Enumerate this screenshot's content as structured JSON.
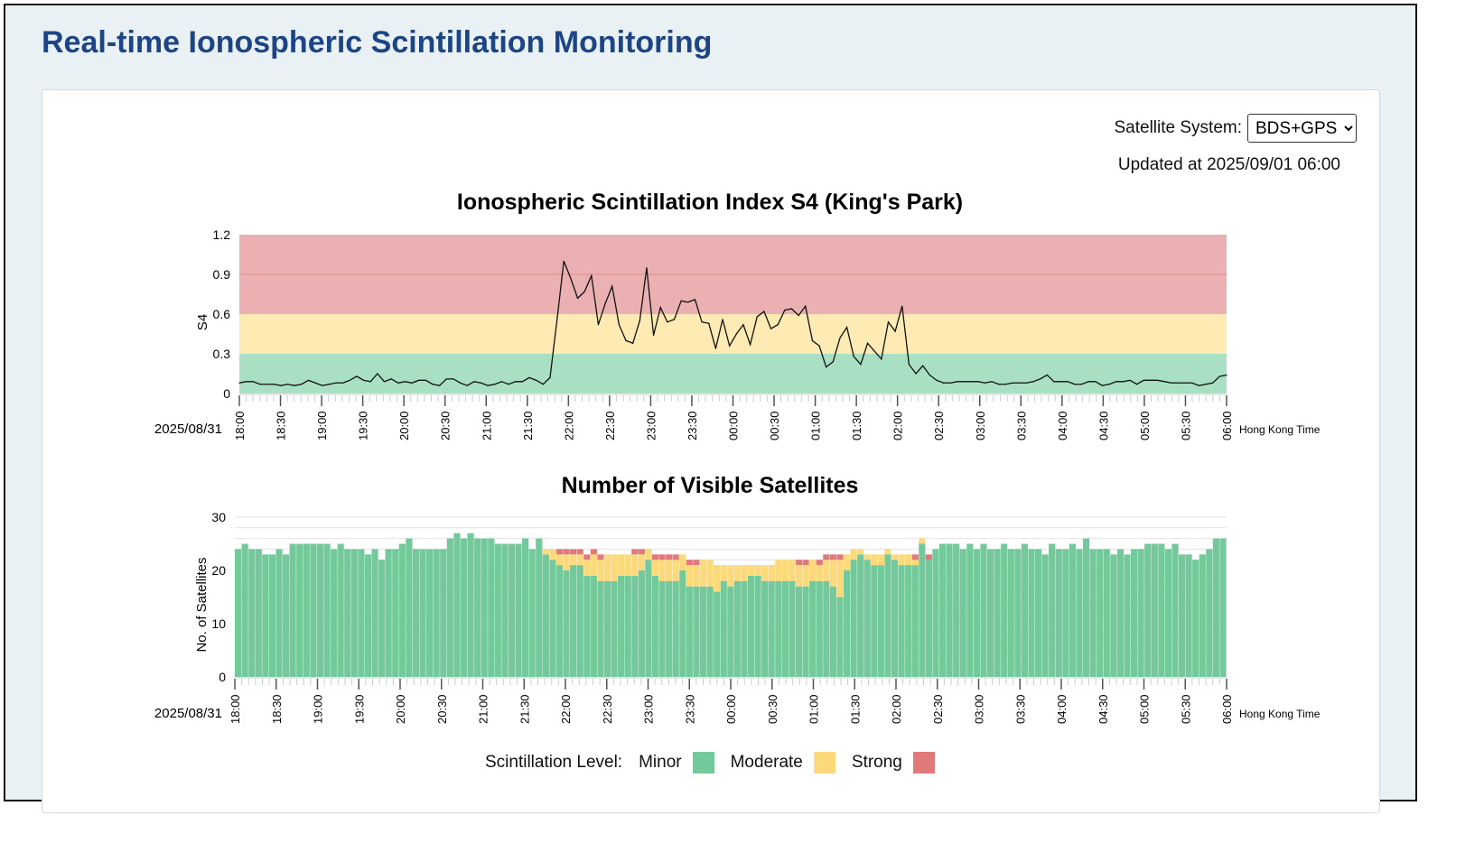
{
  "page": {
    "title": "Real-time Ionospheric Scintillation Monitoring"
  },
  "controls": {
    "system_label": "Satellite System:",
    "system_value": "BDS+GPS",
    "updated": "Updated at 2025/09/01 06:00"
  },
  "colors": {
    "minor": "#73c99a",
    "moderate": "#fcd97a",
    "strong": "#e07a7a",
    "minor_band": "#a9dfc2",
    "moderate_band": "#fdebb3",
    "strong_band": "#ebb0b1",
    "line": "#111111"
  },
  "legend": {
    "title": "Scintillation Level:",
    "minor": "Minor",
    "moderate": "Moderate",
    "strong": "Strong"
  },
  "chart_data": [
    {
      "type": "line",
      "title": "Ionospheric Scintillation Index S4 (King's Park)",
      "ylabel": "S4",
      "xlabel": "Hong Kong Time",
      "date_label": "2025/08/31",
      "ylim": [
        0,
        1.2
      ],
      "yticks": [
        "0",
        "0.3",
        "0.6",
        "0.9",
        "1.2"
      ],
      "bands": [
        {
          "name": "Minor",
          "from": 0,
          "to": 0.3
        },
        {
          "name": "Moderate",
          "from": 0.3,
          "to": 0.6
        },
        {
          "name": "Strong",
          "from": 0.6,
          "to": 1.2
        }
      ],
      "x_start": "18:00",
      "x_end": "06:00",
      "interval_min": 5,
      "xticks": [
        "18:00",
        "18:30",
        "19:00",
        "19:30",
        "20:00",
        "20:30",
        "21:00",
        "21:30",
        "22:00",
        "22:30",
        "23:00",
        "23:30",
        "00:00",
        "00:30",
        "01:00",
        "01:30",
        "02:00",
        "02:30",
        "03:00",
        "03:30",
        "04:00",
        "04:30",
        "05:00",
        "05:30",
        "06:00"
      ],
      "values": [
        0.08,
        0.09,
        0.09,
        0.07,
        0.07,
        0.07,
        0.06,
        0.07,
        0.06,
        0.07,
        0.1,
        0.08,
        0.06,
        0.07,
        0.08,
        0.08,
        0.1,
        0.13,
        0.1,
        0.09,
        0.15,
        0.09,
        0.11,
        0.08,
        0.09,
        0.08,
        0.1,
        0.1,
        0.07,
        0.06,
        0.11,
        0.11,
        0.08,
        0.06,
        0.09,
        0.08,
        0.06,
        0.07,
        0.09,
        0.07,
        0.09,
        0.09,
        0.12,
        0.1,
        0.07,
        0.12,
        0.55,
        1.0,
        0.87,
        0.72,
        0.77,
        0.89,
        0.52,
        0.68,
        0.81,
        0.52,
        0.4,
        0.38,
        0.55,
        0.95,
        0.44,
        0.65,
        0.54,
        0.56,
        0.7,
        0.69,
        0.71,
        0.54,
        0.53,
        0.34,
        0.56,
        0.36,
        0.45,
        0.52,
        0.37,
        0.58,
        0.62,
        0.49,
        0.52,
        0.63,
        0.64,
        0.59,
        0.66,
        0.4,
        0.36,
        0.2,
        0.24,
        0.42,
        0.5,
        0.28,
        0.22,
        0.38,
        0.32,
        0.26,
        0.54,
        0.47,
        0.66,
        0.22,
        0.15,
        0.21,
        0.14,
        0.1,
        0.08,
        0.08,
        0.09,
        0.09,
        0.09,
        0.09,
        0.08,
        0.09,
        0.07,
        0.07,
        0.08,
        0.08,
        0.08,
        0.09,
        0.11,
        0.14,
        0.09,
        0.09,
        0.09,
        0.07,
        0.07,
        0.09,
        0.09,
        0.06,
        0.07,
        0.09,
        0.09,
        0.1,
        0.07,
        0.1,
        0.1,
        0.1,
        0.09,
        0.08,
        0.08,
        0.08,
        0.08,
        0.06,
        0.07,
        0.08,
        0.13,
        0.14
      ]
    },
    {
      "type": "bar",
      "stacked": true,
      "title": "Number of Visible Satellites",
      "ylabel": "No. of Satellites",
      "xlabel": "Hong Kong Time",
      "date_label": "2025/08/31",
      "ylim": [
        0,
        30
      ],
      "yticks": [
        "0",
        "10",
        "20",
        "30"
      ],
      "xticks": [
        "18:00",
        "18:30",
        "19:00",
        "19:30",
        "20:00",
        "20:30",
        "21:00",
        "21:30",
        "22:00",
        "22:30",
        "23:00",
        "23:30",
        "00:00",
        "00:30",
        "01:00",
        "01:30",
        "02:00",
        "02:30",
        "03:00",
        "03:30",
        "04:00",
        "04:30",
        "05:00",
        "05:30",
        "06:00"
      ],
      "total": [
        24,
        25,
        24,
        24,
        23,
        23,
        24,
        23,
        25,
        25,
        25,
        25,
        25,
        25,
        24,
        25,
        24,
        24,
        24,
        23,
        24,
        22,
        24,
        24,
        25,
        26,
        24,
        24,
        24,
        24,
        24,
        26,
        27,
        26,
        27,
        26,
        26,
        26,
        25,
        25,
        25,
        25,
        26,
        24,
        26,
        24,
        24,
        24,
        24,
        24,
        24,
        23,
        24,
        23,
        23,
        23,
        23,
        23,
        24,
        24,
        24,
        23,
        23,
        23,
        23,
        23,
        22,
        22,
        22,
        22,
        21,
        21,
        21,
        21,
        21,
        21,
        21,
        21,
        21,
        22,
        22,
        22,
        22,
        22,
        22,
        22,
        23,
        23,
        23,
        23,
        24,
        24,
        23,
        23,
        23,
        24,
        23,
        23,
        23,
        23,
        26,
        23,
        24,
        25,
        25,
        25,
        24,
        25,
        24,
        25,
        24,
        24,
        25,
        24,
        24,
        25,
        24,
        24,
        23,
        25,
        24,
        24,
        25,
        24,
        26,
        24,
        24,
        24,
        23,
        24,
        23,
        24,
        24,
        25,
        25,
        25,
        24,
        25,
        23,
        23,
        22,
        23,
        24,
        26,
        26
      ],
      "moderate": [
        0,
        0,
        0,
        0,
        0,
        0,
        0,
        0,
        0,
        0,
        0,
        0,
        0,
        0,
        0,
        0,
        0,
        0,
        0,
        0,
        0,
        0,
        0,
        0,
        0,
        0,
        0,
        0,
        0,
        0,
        0,
        0,
        0,
        0,
        0,
        0,
        0,
        0,
        0,
        0,
        0,
        0,
        0,
        0,
        0,
        1,
        2,
        2,
        3,
        2,
        2,
        3,
        4,
        4,
        5,
        5,
        4,
        4,
        4,
        3,
        2,
        3,
        4,
        4,
        4,
        3,
        4,
        4,
        5,
        5,
        5,
        3,
        4,
        3,
        3,
        2,
        2,
        3,
        3,
        4,
        4,
        4,
        4,
        4,
        4,
        3,
        4,
        5,
        7,
        3,
        2,
        1,
        1,
        2,
        2,
        1,
        1,
        2,
        2,
        1,
        1,
        0,
        0,
        0,
        0,
        0,
        0,
        0,
        0,
        0,
        0,
        0,
        0,
        0,
        0,
        0,
        0,
        0,
        0,
        0,
        0,
        0,
        0,
        0,
        0,
        0,
        0,
        0,
        0,
        0,
        0,
        0,
        0,
        0,
        0,
        0,
        0,
        0,
        0,
        0,
        0,
        0,
        0,
        0,
        0
      ],
      "strong": [
        0,
        0,
        0,
        0,
        0,
        0,
        0,
        0,
        0,
        0,
        0,
        0,
        0,
        0,
        0,
        0,
        0,
        0,
        0,
        0,
        0,
        0,
        0,
        0,
        0,
        0,
        0,
        0,
        0,
        0,
        0,
        0,
        0,
        0,
        0,
        0,
        0,
        0,
        0,
        0,
        0,
        0,
        0,
        0,
        0,
        0,
        0,
        1,
        1,
        1,
        1,
        1,
        1,
        1,
        0,
        0,
        0,
        0,
        1,
        1,
        0,
        1,
        1,
        1,
        1,
        0,
        1,
        1,
        0,
        0,
        0,
        0,
        0,
        0,
        0,
        0,
        0,
        0,
        0,
        0,
        0,
        0,
        1,
        1,
        0,
        1,
        1,
        1,
        1,
        0,
        0,
        0,
        0,
        0,
        0,
        0,
        0,
        0,
        0,
        1,
        0,
        1,
        0,
        0,
        0,
        0,
        0,
        0,
        0,
        0,
        0,
        0,
        0,
        0,
        0,
        0,
        0,
        0,
        0,
        0,
        0,
        0,
        0,
        0,
        0,
        0,
        0,
        0,
        0,
        0,
        0,
        0,
        0,
        0,
        0,
        0,
        0,
        0,
        0,
        0,
        0,
        0,
        0,
        0,
        0
      ]
    }
  ]
}
